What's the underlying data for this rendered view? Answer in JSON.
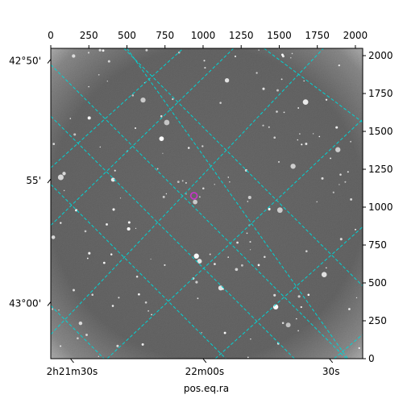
{
  "chart_data": {
    "type": "scatter",
    "title": "",
    "xlabel": "pos.eq.ra",
    "ylabel": "",
    "xlim": [
      0,
      2048
    ],
    "ylim": [
      0,
      2048
    ],
    "grid": true,
    "grid_color": "#00d4d4",
    "marker_color": "#cc33cc",
    "background": "grayscale star field",
    "top_ticks": {
      "values": [
        0,
        250,
        500,
        750,
        1000,
        1250,
        1500,
        1750,
        2000
      ],
      "labels": [
        "0",
        "250",
        "500",
        "750",
        "1000",
        "1250",
        "1500",
        "1750",
        "2000"
      ]
    },
    "right_ticks": {
      "values": [
        0,
        250,
        500,
        750,
        1000,
        1250,
        1500,
        1750,
        2000
      ],
      "labels": [
        "0",
        "250",
        "500",
        "750",
        "1000",
        "1250",
        "1500",
        "1750",
        "2000"
      ]
    },
    "ra_ticks": [
      {
        "x": 140,
        "label": "2h21m30s"
      },
      {
        "x": 1010,
        "label": "22m00s"
      },
      {
        "x": 1840,
        "label": "30s"
      }
    ],
    "dec_ticks": [
      {
        "y": 1965,
        "label": "42°50'"
      },
      {
        "y": 1175,
        "label": "55'"
      },
      {
        "y": 365,
        "label": "43°00'"
      }
    ],
    "grid_lines": [
      {
        "from": [
          480,
          2048
        ],
        "to": [
          2048,
          480
        ]
      },
      {
        "from": [
          0,
          1940
        ],
        "to": [
          1940,
          0
        ]
      },
      {
        "from": [
          0,
          1150
        ],
        "to": [
          1150,
          0
        ]
      },
      {
        "from": [
          0,
          350
        ],
        "to": [
          350,
          0
        ]
      },
      {
        "from": [
          500,
          2048
        ],
        "to": [
          1950,
          0
        ]
      },
      {
        "from": [
          0,
          1600
        ],
        "to": [
          1600,
          0
        ]
      },
      {
        "from": [
          1400,
          2048
        ],
        "to": [
          2048,
          1560
        ]
      },
      {
        "from": [
          0,
          880
        ],
        "to": [
          1200,
          2048
        ]
      },
      {
        "from": [
          0,
          1260
        ],
        "to": [
          870,
          2048
        ]
      },
      {
        "from": [
          370,
          0
        ],
        "to": [
          2048,
          1580
        ]
      },
      {
        "from": [
          1080,
          0
        ],
        "to": [
          2048,
          870
        ]
      },
      {
        "from": [
          1860,
          0
        ],
        "to": [
          2048,
          160
        ]
      },
      {
        "from": [
          0,
          160
        ],
        "to": [
          1790,
          2048
        ]
      }
    ],
    "marker": {
      "x": 940,
      "y": 1075
    }
  }
}
